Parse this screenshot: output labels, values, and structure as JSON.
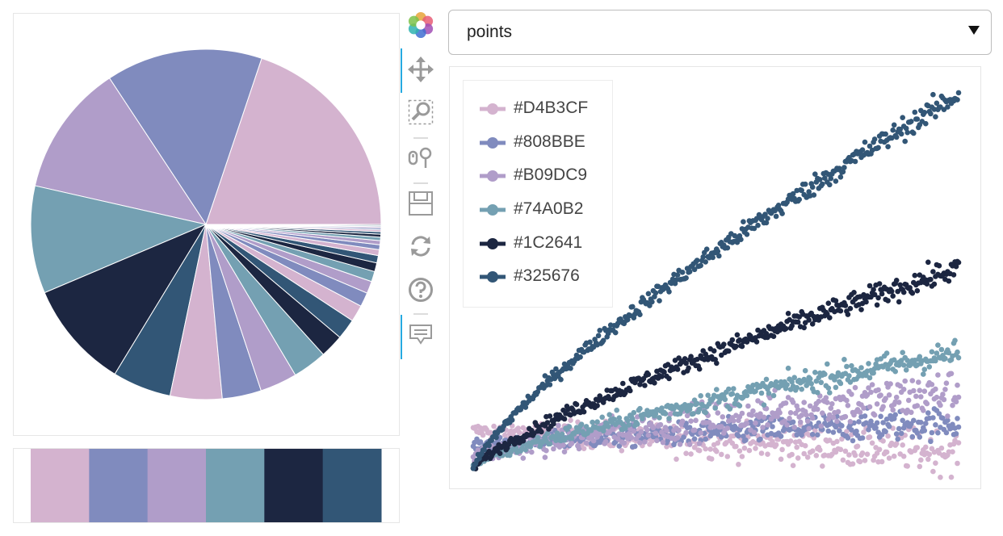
{
  "mode_select": {
    "value": "points",
    "options": [
      "points"
    ]
  },
  "toolbar": {
    "tools": [
      {
        "name": "bokeh-logo",
        "label": "Bokeh"
      },
      {
        "name": "pan",
        "label": "Pan",
        "active": true
      },
      {
        "name": "box-zoom",
        "label": "Box Zoom"
      },
      {
        "name": "wheel-zoom",
        "label": "Wheel Zoom"
      },
      {
        "name": "save",
        "label": "Save"
      },
      {
        "name": "reset",
        "label": "Reset"
      },
      {
        "name": "help",
        "label": "Help"
      },
      {
        "name": "hover",
        "label": "Hover",
        "active": true
      }
    ]
  },
  "palette": [
    "#D4B3CF",
    "#808BBE",
    "#B09DC9",
    "#74A0B2",
    "#1C2641",
    "#325676"
  ],
  "chart_data": [
    {
      "type": "pie",
      "title": "",
      "start_angle_deg": 0,
      "direction": "counterclockwise",
      "values": [
        22,
        16,
        13.5,
        11,
        11,
        6,
        5.3,
        4,
        3.8,
        3.5,
        2.4,
        2.1,
        1.7,
        1.45,
        1.25,
        1.05,
        0.9,
        0.75,
        0.6,
        0.5,
        0.42,
        0.35,
        0.3,
        0.25,
        0.2,
        0.17,
        0.15,
        0.12,
        0.1
      ],
      "colors_cycle": [
        "#D4B3CF",
        "#808BBE",
        "#B09DC9",
        "#74A0B2",
        "#1C2641",
        "#325676"
      ]
    },
    {
      "type": "bar",
      "title": "",
      "categories": [
        "#D4B3CF",
        "#808BBE",
        "#B09DC9",
        "#74A0B2",
        "#1C2641",
        "#325676"
      ],
      "values": [
        1,
        1,
        1,
        1,
        1,
        1
      ],
      "ylim": [
        0,
        1
      ]
    },
    {
      "type": "scatter",
      "title": "",
      "xlabel": "",
      "ylabel": "",
      "x_range": [
        0,
        1
      ],
      "y_range": [
        0,
        1
      ],
      "points_per_series": 400,
      "legend_position": "top-left",
      "series": [
        {
          "name": "#D4B3CF",
          "start": 0.1,
          "end": 0.045,
          "noise": 0.055
        },
        {
          "name": "#808BBE",
          "start": 0.06,
          "end": 0.12,
          "noise": 0.04
        },
        {
          "name": "#B09DC9",
          "start": 0.03,
          "end": 0.2,
          "noise": 0.06
        },
        {
          "name": "#74A0B2",
          "start": 0.01,
          "end": 0.3,
          "noise": 0.035
        },
        {
          "name": "#1C2641",
          "start": 0.0,
          "end": 0.52,
          "noise": 0.03
        },
        {
          "name": "#325676",
          "start": 0.0,
          "end": 0.97,
          "noise": 0.03
        }
      ]
    }
  ]
}
